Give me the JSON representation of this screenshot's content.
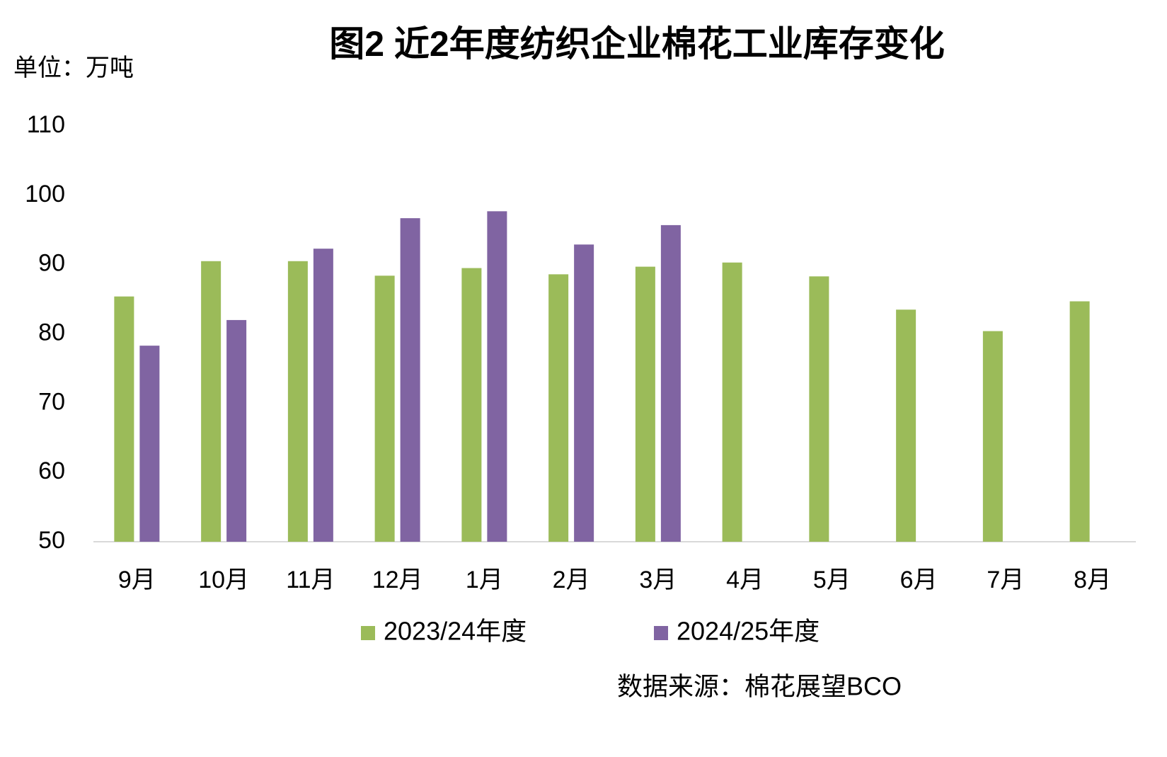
{
  "chart_data": {
    "type": "bar",
    "title": "图2  近2年度纺织企业棉花工业库存变化",
    "y_unit_label": "单位：万吨",
    "source": "数据来源：棉花展望BCO",
    "categories": [
      "9月",
      "10月",
      "11月",
      "12月",
      "1月",
      "2月",
      "3月",
      "4月",
      "5月",
      "6月",
      "7月",
      "8月"
    ],
    "series": [
      {
        "name": "2023/24年度",
        "color": "#9bbb59",
        "values": [
          85.4,
          90.5,
          90.5,
          88.4,
          89.5,
          88.6,
          89.7,
          90.3,
          88.3,
          83.5,
          80.4,
          84.7
        ]
      },
      {
        "name": "2024/25年度",
        "color": "#8064a2",
        "values": [
          78.3,
          82.0,
          92.3,
          96.7,
          97.7,
          92.9,
          95.7,
          null,
          null,
          null,
          null,
          null
        ]
      }
    ],
    "ylim": [
      50,
      110
    ],
    "yticks": [
      50,
      60,
      70,
      80,
      90,
      100,
      110
    ],
    "grid": false,
    "legend": "bottom"
  }
}
